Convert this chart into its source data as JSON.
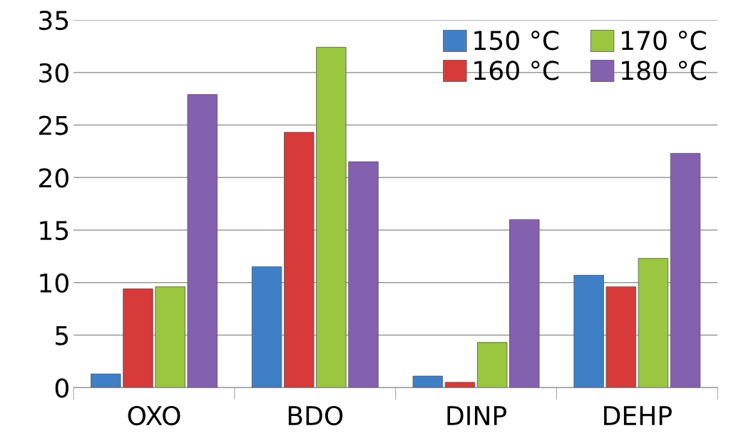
{
  "chart_data": {
    "type": "bar",
    "categories": [
      "OXO",
      "BDO",
      "DINP",
      "DEHP"
    ],
    "series": [
      {
        "name": "150 °C",
        "color": "#3f7fc8",
        "values": [
          1.3,
          11.5,
          1.1,
          10.7
        ]
      },
      {
        "name": "160 °C",
        "color": "#d83a3a",
        "values": [
          9.4,
          24.3,
          0.5,
          9.6
        ]
      },
      {
        "name": "170 °C",
        "color": "#9bc640",
        "values": [
          9.6,
          32.4,
          4.3,
          12.3
        ]
      },
      {
        "name": "180 °C",
        "color": "#8460b0",
        "values": [
          27.9,
          21.5,
          16.0,
          22.3
        ]
      }
    ],
    "ylim": [
      0,
      35
    ],
    "yticks": [
      0,
      5,
      10,
      15,
      20,
      25,
      30,
      35
    ],
    "grid": "y",
    "legend": "top right"
  }
}
